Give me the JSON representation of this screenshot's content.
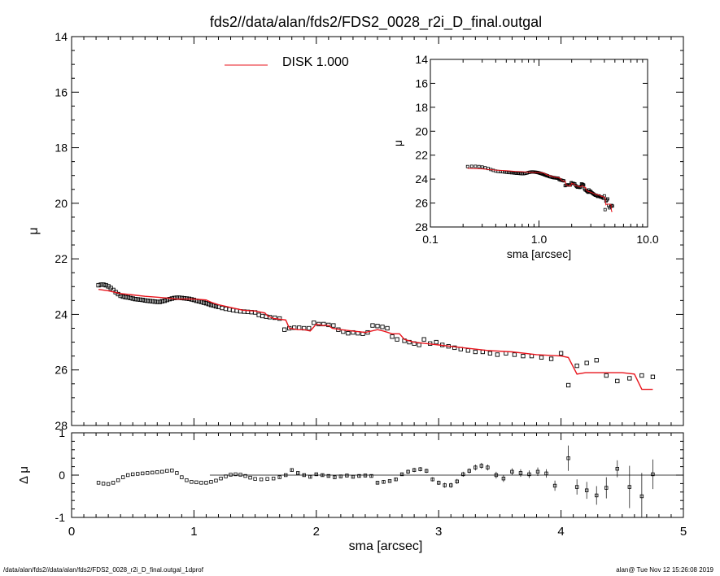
{
  "title": "fds2//data/alan/fds2/FDS2_0028_r2i_D_final.outgal",
  "footer": {
    "left": "/data/alan/fds2//data/alan/fds2/FDS2_0028_r2i_D_final.outgal_1dprof",
    "right": "alan@  Tue Nov 12 15:26:08 2019"
  },
  "colors": {
    "model": "#e8141c",
    "points": "#000000",
    "axes": "#000000"
  },
  "chart_data": [
    {
      "type": "scatter",
      "xlabel": "sma [arcsec]",
      "ylabel": "μ",
      "xlim": [
        0,
        5
      ],
      "ylim": [
        28,
        14
      ],
      "ytick_labels": [
        "14",
        "16",
        "18",
        "20",
        "22",
        "24",
        "26",
        "28"
      ],
      "legend": {
        "position": "top-center",
        "entries": [
          {
            "name": "DISK  1.000",
            "color": "#e8141c",
            "style": "line"
          }
        ]
      },
      "series": [
        {
          "kind": "points",
          "x": [
            0.22,
            0.24,
            0.26,
            0.28,
            0.3,
            0.32,
            0.34,
            0.36,
            0.38,
            0.4,
            0.42,
            0.44,
            0.46,
            0.48,
            0.5,
            0.52,
            0.54,
            0.56,
            0.58,
            0.6,
            0.62,
            0.64,
            0.66,
            0.68,
            0.7,
            0.72,
            0.74,
            0.76,
            0.78,
            0.8,
            0.82,
            0.84,
            0.86,
            0.88,
            0.9,
            0.92,
            0.94,
            0.96,
            0.98,
            1.0,
            1.02,
            1.04,
            1.06,
            1.08,
            1.1,
            1.12,
            1.14,
            1.16,
            1.18,
            1.2,
            1.23,
            1.26,
            1.29,
            1.32,
            1.35,
            1.38,
            1.41,
            1.44,
            1.47,
            1.5,
            1.53,
            1.56,
            1.59,
            1.62,
            1.66,
            1.7,
            1.74,
            1.78,
            1.82,
            1.86,
            1.9,
            1.94,
            1.98,
            2.02,
            2.06,
            2.1,
            2.14,
            2.18,
            2.22,
            2.26,
            2.3,
            2.34,
            2.38,
            2.42,
            2.46,
            2.5,
            2.54,
            2.58,
            2.62,
            2.66,
            2.72,
            2.76,
            2.8,
            2.84,
            2.88,
            2.93,
            2.98,
            3.03,
            3.08,
            3.13,
            3.18,
            3.24,
            3.3,
            3.36,
            3.42,
            3.48,
            3.55,
            3.62,
            3.69,
            3.76,
            3.84,
            3.92,
            4.0,
            4.06,
            4.13,
            4.21,
            4.29,
            4.37,
            4.46,
            4.56,
            4.66,
            4.75
          ],
          "y": [
            22.95,
            22.93,
            22.93,
            22.95,
            22.99,
            23.05,
            23.12,
            23.2,
            23.27,
            23.33,
            23.36,
            23.38,
            23.39,
            23.41,
            23.43,
            23.45,
            23.46,
            23.47,
            23.48,
            23.5,
            23.51,
            23.52,
            23.53,
            23.54,
            23.55,
            23.55,
            23.53,
            23.51,
            23.48,
            23.45,
            23.43,
            23.41,
            23.4,
            23.4,
            23.41,
            23.42,
            23.43,
            23.44,
            23.46,
            23.48,
            23.51,
            23.53,
            23.55,
            23.58,
            23.6,
            23.63,
            23.66,
            23.68,
            23.71,
            23.73,
            23.77,
            23.8,
            23.82,
            23.85,
            23.87,
            23.89,
            23.9,
            23.91,
            23.92,
            23.93,
            24.02,
            24.06,
            24.08,
            24.1,
            24.12,
            24.15,
            24.55,
            24.5,
            24.48,
            24.48,
            24.5,
            24.5,
            24.3,
            24.35,
            24.35,
            24.38,
            24.4,
            24.55,
            24.62,
            24.68,
            24.65,
            24.68,
            24.7,
            24.65,
            24.4,
            24.42,
            24.45,
            24.5,
            24.8,
            24.9,
            24.95,
            25.0,
            25.05,
            25.1,
            24.9,
            25.05,
            25.0,
            25.1,
            25.15,
            25.2,
            25.25,
            25.3,
            25.35,
            25.35,
            25.4,
            25.45,
            25.4,
            25.45,
            25.5,
            25.5,
            25.55,
            25.6,
            25.4,
            26.55,
            25.85,
            25.75,
            25.65,
            26.2,
            26.4,
            26.3,
            26.2,
            26.25
          ]
        },
        {
          "kind": "model",
          "name": "DISK  1.000",
          "x": [
            0.22,
            0.3,
            0.4,
            0.5,
            0.6,
            0.7,
            0.8,
            0.85,
            0.95,
            1.0,
            1.1,
            1.15,
            1.2,
            1.3,
            1.4,
            1.5,
            1.58,
            1.6,
            1.65,
            1.75,
            1.78,
            1.85,
            1.9,
            1.95,
            2.0,
            2.05,
            2.1,
            2.13,
            2.2,
            2.3,
            2.4,
            2.45,
            2.5,
            2.55,
            2.62,
            2.68,
            2.72,
            2.8,
            2.9,
            3.0,
            3.2,
            3.4,
            3.6,
            3.8,
            4.0,
            4.06,
            4.13,
            4.2,
            4.3,
            4.4,
            4.5,
            4.6,
            4.66,
            4.75
          ],
          "y": [
            23.1,
            23.15,
            23.25,
            23.3,
            23.35,
            23.38,
            23.42,
            23.45,
            23.45,
            23.45,
            23.48,
            23.58,
            23.65,
            23.75,
            23.85,
            23.88,
            23.95,
            24.05,
            24.15,
            24.2,
            24.5,
            24.55,
            24.55,
            24.6,
            24.35,
            24.4,
            24.4,
            24.5,
            24.55,
            24.6,
            24.65,
            24.6,
            24.55,
            24.6,
            24.7,
            24.7,
            24.9,
            25.0,
            25.05,
            25.1,
            25.2,
            25.3,
            25.35,
            25.45,
            25.5,
            25.55,
            26.15,
            26.1,
            26.1,
            26.1,
            26.1,
            26.15,
            26.7,
            26.7
          ]
        }
      ]
    },
    {
      "type": "scatter",
      "inset": true,
      "xlabel": "sma [arcsec]",
      "ylabel": "μ",
      "xscale": "log",
      "xlim": [
        0.1,
        10.0
      ],
      "ylim": [
        28,
        14
      ],
      "xtick_labels": [
        "0.1",
        "1.0",
        "10.0"
      ],
      "ytick_labels": [
        "14",
        "16",
        "18",
        "20",
        "22",
        "24",
        "26",
        "28"
      ]
    },
    {
      "type": "scatter",
      "xlabel": "sma [arcsec]",
      "ylabel": "Δ μ",
      "xlim": [
        0,
        5
      ],
      "ylim": [
        -1,
        1
      ],
      "xtick_labels": [
        "0",
        "1",
        "2",
        "3",
        "4",
        "5"
      ],
      "ytick_labels": [
        "1",
        "0",
        "-1"
      ],
      "reference_line": 0,
      "series": [
        {
          "kind": "residuals",
          "x": [
            0.22,
            0.26,
            0.3,
            0.34,
            0.38,
            0.42,
            0.46,
            0.5,
            0.54,
            0.58,
            0.62,
            0.66,
            0.7,
            0.74,
            0.78,
            0.82,
            0.86,
            0.9,
            0.94,
            0.98,
            1.02,
            1.06,
            1.1,
            1.14,
            1.18,
            1.22,
            1.26,
            1.3,
            1.34,
            1.38,
            1.42,
            1.46,
            1.5,
            1.55,
            1.6,
            1.65,
            1.7,
            1.75,
            1.8,
            1.85,
            1.9,
            1.95,
            2.0,
            2.05,
            2.1,
            2.15,
            2.2,
            2.25,
            2.3,
            2.35,
            2.4,
            2.45,
            2.5,
            2.55,
            2.6,
            2.65,
            2.7,
            2.75,
            2.8,
            2.85,
            2.9,
            2.95,
            3.0,
            3.05,
            3.1,
            3.15,
            3.2,
            3.25,
            3.3,
            3.35,
            3.4,
            3.47,
            3.53,
            3.6,
            3.67,
            3.74,
            3.81,
            3.88,
            3.95,
            4.06,
            4.13,
            4.21,
            4.29,
            4.37,
            4.46,
            4.56,
            4.66,
            4.75
          ],
          "y": [
            -0.18,
            -0.2,
            -0.21,
            -0.18,
            -0.12,
            -0.05,
            0.0,
            0.02,
            0.03,
            0.04,
            0.05,
            0.06,
            0.07,
            0.08,
            0.1,
            0.11,
            0.05,
            -0.05,
            -0.12,
            -0.16,
            -0.17,
            -0.18,
            -0.18,
            -0.16,
            -0.13,
            -0.08,
            -0.03,
            0.01,
            0.02,
            0.01,
            -0.02,
            -0.06,
            -0.09,
            -0.1,
            -0.09,
            -0.08,
            -0.05,
            0.0,
            0.12,
            0.05,
            0.0,
            -0.04,
            0.02,
            0.0,
            -0.02,
            -0.05,
            -0.03,
            -0.01,
            -0.04,
            -0.02,
            -0.01,
            -0.02,
            -0.18,
            -0.16,
            -0.14,
            -0.1,
            0.02,
            0.08,
            0.12,
            0.14,
            0.1,
            -0.1,
            -0.18,
            -0.24,
            -0.24,
            -0.15,
            0.02,
            0.1,
            0.18,
            0.22,
            0.18,
            0.0,
            -0.08,
            0.08,
            0.05,
            0.02,
            0.08,
            0.04,
            -0.25,
            0.4,
            -0.28,
            -0.36,
            -0.48,
            -0.3,
            0.15,
            -0.28,
            -0.5,
            0.02
          ],
          "err": [
            0.01,
            0.01,
            0.01,
            0.01,
            0.01,
            0.01,
            0.01,
            0.01,
            0.01,
            0.01,
            0.01,
            0.01,
            0.01,
            0.01,
            0.01,
            0.01,
            0.01,
            0.01,
            0.01,
            0.01,
            0.01,
            0.01,
            0.01,
            0.01,
            0.01,
            0.01,
            0.01,
            0.01,
            0.01,
            0.01,
            0.01,
            0.01,
            0.01,
            0.01,
            0.01,
            0.01,
            0.02,
            0.02,
            0.03,
            0.03,
            0.03,
            0.03,
            0.03,
            0.03,
            0.03,
            0.03,
            0.03,
            0.03,
            0.03,
            0.03,
            0.03,
            0.03,
            0.04,
            0.04,
            0.04,
            0.04,
            0.04,
            0.05,
            0.05,
            0.05,
            0.05,
            0.05,
            0.05,
            0.06,
            0.06,
            0.06,
            0.06,
            0.06,
            0.07,
            0.07,
            0.07,
            0.08,
            0.08,
            0.08,
            0.09,
            0.09,
            0.1,
            0.1,
            0.12,
            0.3,
            0.18,
            0.2,
            0.22,
            0.25,
            0.2,
            0.5,
            0.55,
            0.35
          ]
        }
      ]
    }
  ]
}
